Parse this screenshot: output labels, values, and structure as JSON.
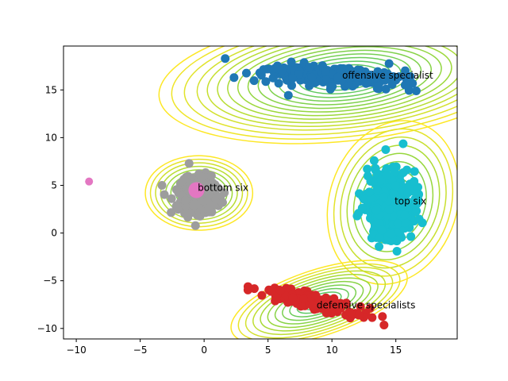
{
  "chart_data": {
    "type": "scatter",
    "title": "",
    "xlabel": "",
    "ylabel": "",
    "xlim": [
      -11,
      19.8
    ],
    "ylim": [
      -11.1,
      19.6
    ],
    "grid": false,
    "x_ticks": [
      -10,
      -5,
      0,
      5,
      10,
      15
    ],
    "x_tick_labels": [
      "−10",
      "−5",
      "0",
      "5",
      "10",
      "15"
    ],
    "y_ticks": [
      -10,
      -5,
      0,
      5,
      10,
      15
    ],
    "y_tick_labels": [
      "−10",
      "−5",
      "0",
      "5",
      "10",
      "15"
    ],
    "contour_colors": [
      "#440154",
      "#3b528b",
      "#21918c",
      "#5ec962",
      "#9fd938",
      "#fde725"
    ],
    "clusters": [
      {
        "label": "offensive specialist",
        "color": "#1f77b4",
        "center": [
          10.0,
          16.5
        ],
        "spread": [
          5.2,
          1.0
        ],
        "angle": -5,
        "n": 280,
        "contour_center": [
          11.0,
          16.3
        ],
        "contour_rx": [
          2.0,
          2.8,
          3.6,
          4.4,
          5.2,
          6.0,
          6.8,
          7.6,
          8.4,
          9.2,
          10.0,
          10.8,
          11.6,
          12.6,
          13.6,
          14.6
        ],
        "contour_ry_ratio": 0.19,
        "contour_angle": -6,
        "label_xy": [
          10.8,
          16.2
        ]
      },
      {
        "label": "bottom six",
        "color": "#9d9d9d",
        "center": [
          -0.5,
          4.0
        ],
        "spread": [
          1.6,
          1.9
        ],
        "angle": 0,
        "n": 320,
        "contour_center": [
          -0.4,
          4.2
        ],
        "contour_rx": [
          0.6,
          1.0,
          1.4,
          1.8,
          2.2,
          2.6,
          3.0,
          3.4,
          3.8,
          4.2
        ],
        "contour_ry_ratio": 0.93,
        "contour_angle": 0,
        "label_xy": [
          -0.5,
          4.4
        ]
      },
      {
        "label": "top six",
        "color": "#17becf",
        "center": [
          14.6,
          2.8
        ],
        "spread": [
          1.9,
          3.6
        ],
        "angle": 0,
        "n": 420,
        "contour_center": [
          14.8,
          3.2
        ],
        "contour_rx": [
          1.0,
          1.5,
          2.0,
          2.5,
          3.0,
          3.5,
          4.0,
          4.5,
          5.0
        ],
        "contour_ry_ratio": 1.75,
        "contour_angle": 18,
        "label_xy": [
          14.9,
          3.0
        ]
      },
      {
        "label": "defensive specialists",
        "color": "#d62728",
        "center": [
          8.5,
          -7.2
        ],
        "spread": [
          3.8,
          0.7
        ],
        "angle": -18,
        "n": 220,
        "contour_center": [
          9.0,
          -7.3
        ],
        "contour_rx": [
          1.2,
          1.8,
          2.4,
          3.0,
          3.6,
          4.2,
          4.8,
          5.4,
          6.0,
          6.6,
          7.2
        ],
        "contour_ry_ratio": 0.2,
        "contour_angle": -18,
        "label_xy": [
          8.8,
          -7.9
        ]
      }
    ],
    "outliers": [
      {
        "x": -0.6,
        "y": 4.5,
        "color": "#e377c2"
      },
      {
        "x": -9.0,
        "y": 5.4,
        "color": "#e377c2"
      }
    ]
  }
}
